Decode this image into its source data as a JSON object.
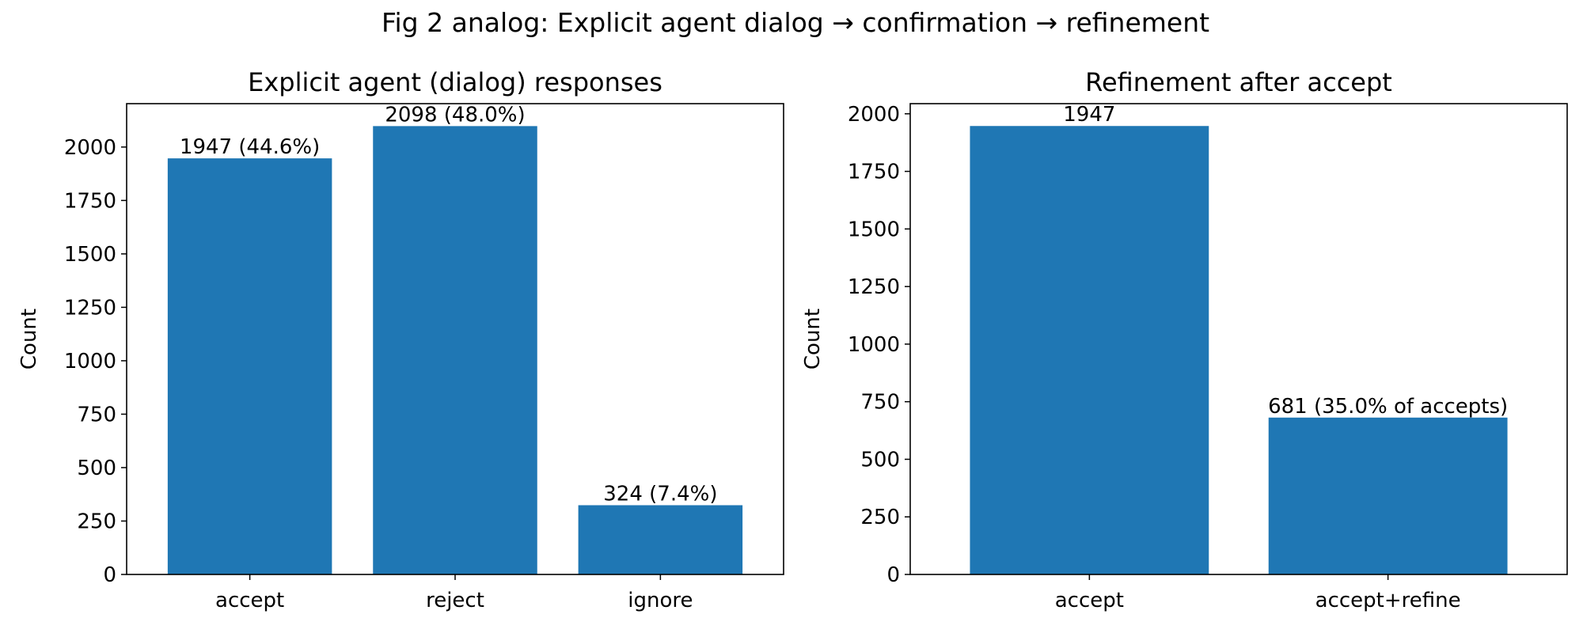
{
  "suptitle": "Fig 2 analog: Explicit agent dialog → confirmation → refinement",
  "colors": {
    "bar": "#1f77b4",
    "axis": "#000000",
    "background": "#ffffff"
  },
  "chart_data": [
    {
      "type": "bar",
      "title": "Explicit agent (dialog) responses",
      "xlabel": "",
      "ylabel": "Count",
      "categories": [
        "accept",
        "reject",
        "ignore"
      ],
      "values": [
        1947,
        2098,
        324
      ],
      "bar_labels": [
        "1947 (44.6%)",
        "2098 (48.0%)",
        "324 (7.4%)"
      ],
      "ylim": [
        0,
        2203
      ],
      "yticks": [
        0,
        250,
        500,
        750,
        1000,
        1250,
        1500,
        1750,
        2000
      ],
      "grid": false,
      "legend": "none"
    },
    {
      "type": "bar",
      "title": "Refinement after accept",
      "xlabel": "",
      "ylabel": "Count",
      "categories": [
        "accept",
        "accept+refine"
      ],
      "values": [
        1947,
        681
      ],
      "bar_labels": [
        "1947",
        "681 (35.0% of accepts)"
      ],
      "ylim": [
        0,
        2044
      ],
      "yticks": [
        0,
        250,
        500,
        750,
        1000,
        1250,
        1500,
        1750,
        2000
      ],
      "grid": false,
      "legend": "none"
    }
  ]
}
